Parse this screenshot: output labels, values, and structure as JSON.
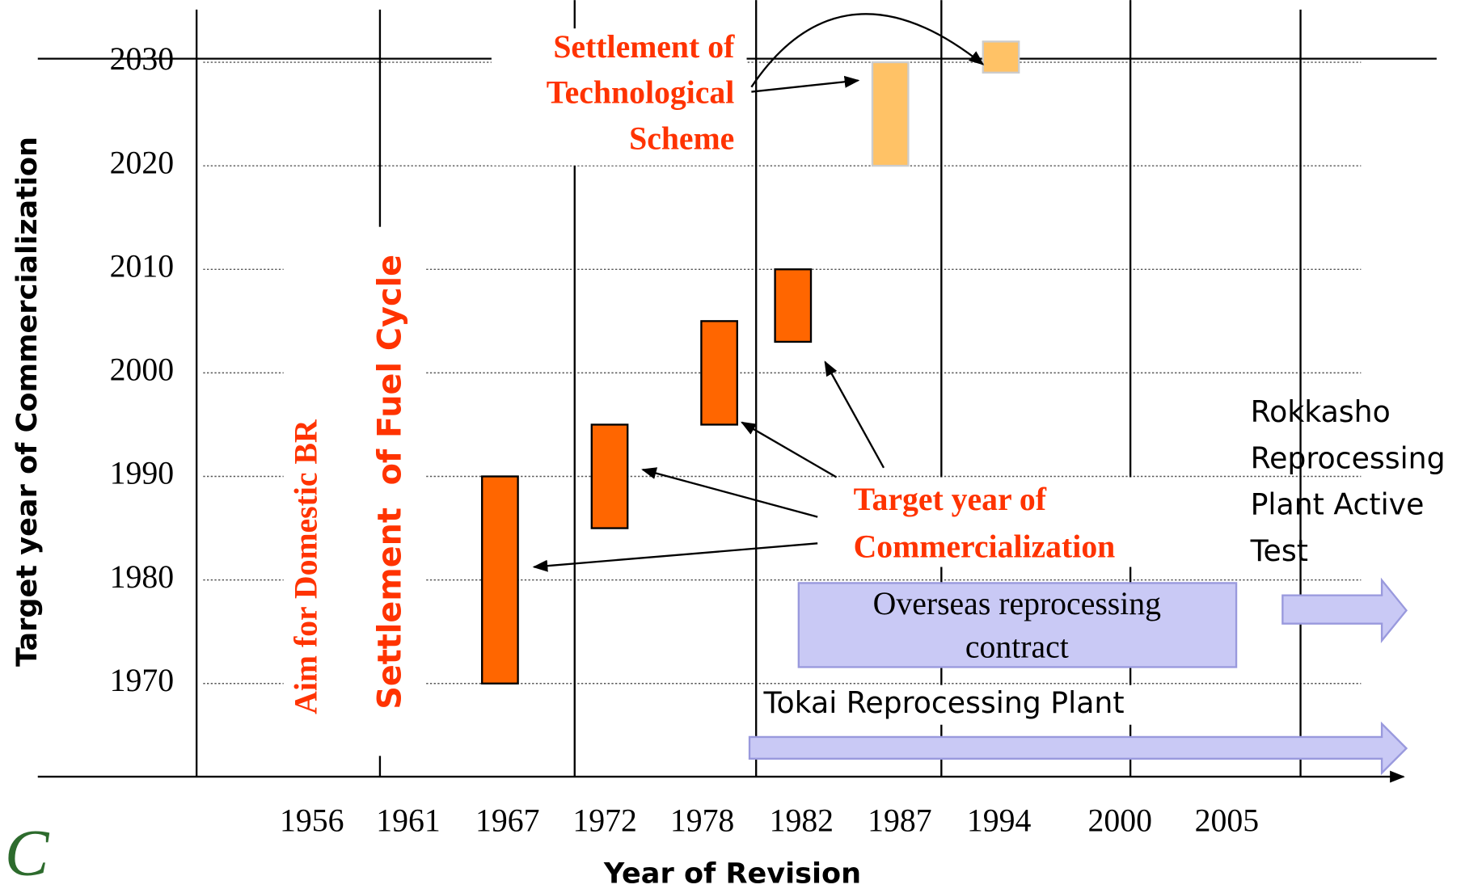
{
  "chart_data": {
    "type": "floating_bar",
    "x_label": "Year of Revision",
    "y_label": "Target year of Commercialization",
    "categories": [
      "1956",
      "1961",
      "1967",
      "1972",
      "1978",
      "1982",
      "1987",
      "1994",
      "2000",
      "2005"
    ],
    "series": [
      {
        "color": "#ff6600",
        "values": [
          null,
          null,
          [
            1970,
            1990
          ],
          [
            1985,
            1995
          ],
          [
            1995,
            2005
          ],
          [
            2003,
            2010
          ],
          null,
          null,
          null,
          null
        ]
      },
      {
        "color": "#ffc266",
        "values": [
          null,
          null,
          null,
          null,
          null,
          null,
          [
            2020,
            2030
          ],
          [
            2029,
            2032
          ],
          null,
          null
        ]
      }
    ],
    "ylim": [
      1961,
      2036
    ],
    "yticks": [
      1970,
      1980,
      1990,
      2000,
      2010,
      2020,
      2030
    ],
    "grid": true,
    "annotations": {
      "technological": [
        "Settlement of",
        "Technological",
        "Scheme"
      ],
      "target": [
        "Target year of",
        "Commercialization"
      ],
      "domestic_br": "Aim for Domestic BR",
      "fuel_cycle": "Settlement  of Fuel Cycle",
      "rokkasho": [
        "Rokkasho",
        "Reprocessing",
        "Plant Active",
        "Test"
      ],
      "overseas": [
        "Overseas reprocessing",
        "contract"
      ],
      "tokai": "Tokai Reprocessing Plant"
    }
  }
}
